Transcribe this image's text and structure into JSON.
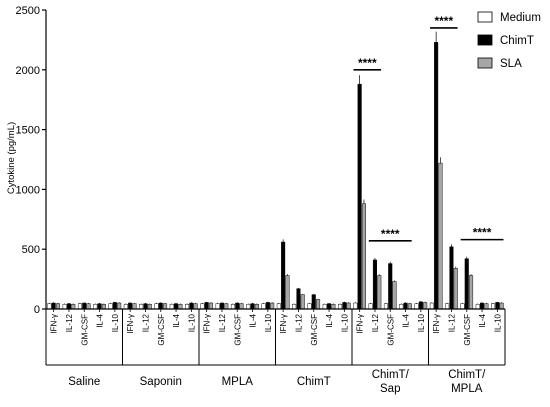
{
  "chart_data": {
    "type": "bar",
    "ylabel": "Cytokine (pg/mL)",
    "ylim": [
      0,
      2500
    ],
    "yticks": [
      0,
      500,
      1000,
      1500,
      2000,
      2500
    ],
    "groups": [
      "Saline",
      "Saponin",
      "MPLA",
      "ChimT",
      "ChimT/ Sap",
      "ChimT/ MPLA"
    ],
    "cytokines": [
      "IFN-γ",
      "IL-12",
      "GM-CSF",
      "IL-4",
      "IL-10"
    ],
    "legend_position": "top-right",
    "series": [
      {
        "name": "Medium",
        "color": "#ffffff",
        "values": [
          [
            45,
            40,
            45,
            40,
            45
          ],
          [
            40,
            40,
            45,
            40,
            40
          ],
          [
            45,
            45,
            40,
            40,
            45
          ],
          [
            45,
            40,
            45,
            40,
            40
          ],
          [
            50,
            45,
            45,
            40,
            45
          ],
          [
            50,
            45,
            45,
            40,
            45
          ]
        ]
      },
      {
        "name": "ChimT",
        "color": "#000000",
        "values": [
          [
            50,
            45,
            50,
            45,
            55
          ],
          [
            50,
            45,
            50,
            45,
            50
          ],
          [
            55,
            50,
            50,
            45,
            55
          ],
          [
            560,
            170,
            120,
            45,
            55
          ],
          [
            1880,
            410,
            380,
            50,
            60
          ],
          [
            2230,
            520,
            420,
            50,
            55
          ]
        ]
      },
      {
        "name": "SLA",
        "color": "#a6a6a6",
        "values": [
          [
            45,
            40,
            45,
            40,
            50
          ],
          [
            45,
            40,
            45,
            40,
            45
          ],
          [
            50,
            45,
            45,
            40,
            50
          ],
          [
            280,
            120,
            80,
            40,
            50
          ],
          [
            880,
            280,
            230,
            45,
            55
          ],
          [
            1220,
            340,
            280,
            45,
            50
          ]
        ]
      }
    ],
    "annotations": [
      {
        "label": "****",
        "group": 4,
        "from": 0,
        "to": 1,
        "y": 2000
      },
      {
        "label": "****",
        "group": 4,
        "from": 1,
        "to": 3,
        "y": 570
      },
      {
        "label": "****",
        "group": 5,
        "from": 0,
        "to": 1,
        "y": 2350
      },
      {
        "label": "****",
        "group": 5,
        "from": 2,
        "to": 4,
        "y": 580
      }
    ]
  }
}
